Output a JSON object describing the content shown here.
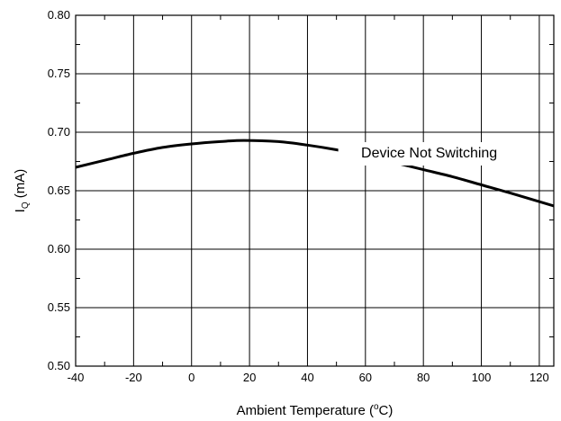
{
  "chart_data": {
    "type": "line",
    "title": "",
    "xlabel": {
      "prefix": "Ambient Temperature (",
      "sup": "o",
      "suffix": "C)"
    },
    "ylabel": {
      "main": "I",
      "sub": "Q",
      "suffix": " (mA)"
    },
    "xlim": [
      -40,
      125
    ],
    "ylim": [
      0.5,
      0.8
    ],
    "grid": true,
    "x_ticks": [
      -40,
      -20,
      0,
      20,
      40,
      60,
      80,
      100,
      120
    ],
    "x_tick_labels": [
      "-40",
      "-20",
      "0",
      "20",
      "40",
      "60",
      "80",
      "100",
      "120"
    ],
    "y_ticks": [
      0.5,
      0.55,
      0.6,
      0.65,
      0.7,
      0.75,
      0.8
    ],
    "y_tick_labels": [
      "0.50",
      "0.55",
      "0.60",
      "0.65",
      "0.70",
      "0.75",
      "0.80"
    ],
    "series": [
      {
        "color": "#000000",
        "x": [
          -40,
          -30,
          -20,
          -10,
          0,
          10,
          18,
          30,
          40,
          50,
          60,
          70,
          80,
          90,
          100,
          110,
          125
        ],
        "y": [
          0.67,
          0.676,
          0.682,
          0.687,
          0.69,
          0.692,
          0.693,
          0.692,
          0.689,
          0.685,
          0.68,
          0.674,
          0.668,
          0.662,
          0.655,
          0.648,
          0.637
        ]
      }
    ],
    "annotations": [
      {
        "text": "Device Not Switching",
        "x": 82,
        "y": 0.69
      }
    ]
  }
}
